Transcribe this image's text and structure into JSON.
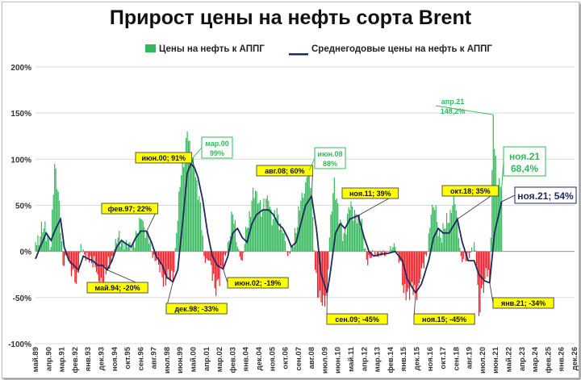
{
  "title": "Прирост цены на нефть сорта Brent",
  "legend": {
    "bars_label": "Цены на нефть к АППГ",
    "line_label": "Среднегодовые цены на нефть к АППГ"
  },
  "colors": {
    "positive_bar": "#33b85a",
    "negative_bar": "#ee1c24",
    "line": "#1f2a5e",
    "callout_yellow": "#ffff00",
    "callout_green_text": "#33b85a"
  },
  "chart_data": {
    "type": "bar",
    "title": "Прирост цены на нефть сорта Brent",
    "ylim": [
      -100,
      200
    ],
    "y_unit": "%",
    "y_ticks": [
      "200%",
      "150%",
      "100%",
      "50%",
      "0%",
      "-50%",
      "-100%"
    ],
    "x_tick_labels": [
      "май.89",
      "апр.90",
      "мар.91",
      "фев.92",
      "янв.93",
      "дек.93",
      "ноя.94",
      "окт.95",
      "сен.96",
      "авг.97",
      "июл.98",
      "июн.99",
      "май.00",
      "апр.01",
      "мар.02",
      "фев.03",
      "янв.04",
      "дек.04",
      "ноя.05",
      "окт.06",
      "сен.07",
      "авг.08",
      "июл.09",
      "июн.10",
      "май.11",
      "апр.12",
      "мар.13",
      "фев.14",
      "янв.15",
      "дек.15",
      "ноя.16",
      "окт.17",
      "сен.18",
      "авг.19",
      "июл.20",
      "июн.21",
      "май.22",
      "апр.23",
      "мар.24",
      "фев.25",
      "янв.26",
      "дек.26"
    ],
    "x_range": [
      "1989-05",
      "2026-12"
    ],
    "series": [
      {
        "name": "Цены на нефть к АППГ",
        "kind": "bar",
        "period": "monthly",
        "start": "1989-05",
        "end": "2021-11",
        "anchor_points": [
          [
            "1989-05",
            10
          ],
          [
            "1989-12",
            25
          ],
          [
            "1990-03",
            18
          ],
          [
            "1990-06",
            5
          ],
          [
            "1990-09",
            95
          ],
          [
            "1990-10",
            90
          ],
          [
            "1991-01",
            55
          ],
          [
            "1991-04",
            -15
          ],
          [
            "1991-08",
            -5
          ],
          [
            "1991-12",
            -20
          ],
          [
            "1992-03",
            -35
          ],
          [
            "1992-07",
            8
          ],
          [
            "1992-11",
            -10
          ],
          [
            "1993-03",
            -5
          ],
          [
            "1993-09",
            -25
          ],
          [
            "1994-01",
            -35
          ],
          [
            "1994-05",
            -20
          ],
          [
            "1994-09",
            -5
          ],
          [
            "1995-02",
            15
          ],
          [
            "1995-06",
            12
          ],
          [
            "1995-10",
            5
          ],
          [
            "1996-02",
            8
          ],
          [
            "1996-06",
            20
          ],
          [
            "1996-10",
            35
          ],
          [
            "1997-02",
            22
          ],
          [
            "1997-06",
            0
          ],
          [
            "1997-10",
            -10
          ],
          [
            "1998-03",
            -28
          ],
          [
            "1998-07",
            -30
          ],
          [
            "1998-12",
            -33
          ],
          [
            "1999-03",
            20
          ],
          [
            "1999-06",
            70
          ],
          [
            "1999-12",
            130
          ],
          [
            "2000-03",
            99
          ],
          [
            "2000-06",
            91
          ],
          [
            "2000-10",
            60
          ],
          [
            "2001-02",
            -5
          ],
          [
            "2001-06",
            -10
          ],
          [
            "2001-11",
            -40
          ],
          [
            "2002-02",
            -30
          ],
          [
            "2002-06",
            -19
          ],
          [
            "2002-10",
            10
          ],
          [
            "2003-02",
            40
          ],
          [
            "2003-06",
            5
          ],
          [
            "2003-10",
            -10
          ],
          [
            "2004-02",
            25
          ],
          [
            "2004-06",
            55
          ],
          [
            "2004-10",
            65
          ],
          [
            "2005-03",
            45
          ],
          [
            "2005-08",
            55
          ],
          [
            "2005-12",
            35
          ],
          [
            "2006-04",
            40
          ],
          [
            "2006-08",
            20
          ],
          [
            "2006-12",
            -5
          ],
          [
            "2007-03",
            5
          ],
          [
            "2007-07",
            20
          ],
          [
            "2007-11",
            55
          ],
          [
            "2008-03",
            75
          ],
          [
            "2008-06",
            88
          ],
          [
            "2008-08",
            60
          ],
          [
            "2008-11",
            -20
          ],
          [
            "2009-01",
            -50
          ],
          [
            "2009-04",
            -55
          ],
          [
            "2009-09",
            -45
          ],
          [
            "2009-12",
            40
          ],
          [
            "2010-03",
            80
          ],
          [
            "2010-07",
            30
          ],
          [
            "2010-11",
            20
          ],
          [
            "2011-04",
            45
          ],
          [
            "2011-08",
            45
          ],
          [
            "2011-11",
            39
          ],
          [
            "2012-03",
            20
          ],
          [
            "2012-07",
            -15
          ],
          [
            "2012-12",
            0
          ],
          [
            "2013-06",
            -5
          ],
          [
            "2013-12",
            0
          ],
          [
            "2014-06",
            5
          ],
          [
            "2014-10",
            -10
          ],
          [
            "2015-01",
            -45
          ],
          [
            "2015-05",
            -40
          ],
          [
            "2015-11",
            -45
          ],
          [
            "2016-03",
            -30
          ],
          [
            "2016-08",
            -5
          ],
          [
            "2016-12",
            40
          ],
          [
            "2017-03",
            45
          ],
          [
            "2017-08",
            15
          ],
          [
            "2017-12",
            25
          ],
          [
            "2018-04",
            45
          ],
          [
            "2018-07",
            60
          ],
          [
            "2018-10",
            35
          ],
          [
            "2019-01",
            -5
          ],
          [
            "2019-06",
            -10
          ],
          [
            "2019-12",
            10
          ],
          [
            "2020-02",
            -15
          ],
          [
            "2020-04",
            -70
          ],
          [
            "2020-06",
            -40
          ],
          [
            "2020-09",
            -30
          ],
          [
            "2020-12",
            -20
          ],
          [
            "2021-01",
            -34
          ],
          [
            "2021-04",
            148.2
          ],
          [
            "2021-07",
            70
          ],
          [
            "2021-11",
            68.4
          ]
        ]
      },
      {
        "name": "Среднегодовые цены на нефть к АППГ",
        "kind": "line",
        "period": "monthly",
        "start": "1989-05",
        "end": "2021-11",
        "anchor_points": [
          [
            "1989-05",
            -8
          ],
          [
            "1989-09",
            5
          ],
          [
            "1990-02",
            20
          ],
          [
            "1990-06",
            12
          ],
          [
            "1990-10",
            25
          ],
          [
            "1991-02",
            35
          ],
          [
            "1991-05",
            5
          ],
          [
            "1991-09",
            -10
          ],
          [
            "1992-01",
            -15
          ],
          [
            "1992-05",
            -20
          ],
          [
            "1992-09",
            -5
          ],
          [
            "1993-01",
            -8
          ],
          [
            "1993-05",
            -10
          ],
          [
            "1993-09",
            -15
          ],
          [
            "1994-01",
            -15
          ],
          [
            "1994-05",
            -20
          ],
          [
            "1994-09",
            -10
          ],
          [
            "1995-01",
            5
          ],
          [
            "1995-05",
            12
          ],
          [
            "1995-09",
            8
          ],
          [
            "1996-01",
            5
          ],
          [
            "1996-05",
            15
          ],
          [
            "1996-09",
            22
          ],
          [
            "1997-02",
            22
          ],
          [
            "1997-06",
            10
          ],
          [
            "1997-10",
            -5
          ],
          [
            "1998-03",
            -15
          ],
          [
            "1998-07",
            -28
          ],
          [
            "1998-12",
            -33
          ],
          [
            "1999-04",
            -20
          ],
          [
            "1999-08",
            30
          ],
          [
            "1999-12",
            85
          ],
          [
            "2000-03",
            95
          ],
          [
            "2000-06",
            91
          ],
          [
            "2000-09",
            80
          ],
          [
            "2001-01",
            55
          ],
          [
            "2001-05",
            20
          ],
          [
            "2001-09",
            -5
          ],
          [
            "2002-01",
            -15
          ],
          [
            "2002-06",
            -19
          ],
          [
            "2002-10",
            -5
          ],
          [
            "2003-02",
            20
          ],
          [
            "2003-06",
            25
          ],
          [
            "2003-10",
            15
          ],
          [
            "2004-02",
            10
          ],
          [
            "2004-06",
            30
          ],
          [
            "2004-10",
            40
          ],
          [
            "2005-03",
            45
          ],
          [
            "2005-08",
            45
          ],
          [
            "2005-12",
            40
          ],
          [
            "2006-04",
            30
          ],
          [
            "2006-08",
            25
          ],
          [
            "2006-12",
            15
          ],
          [
            "2007-03",
            5
          ],
          [
            "2007-07",
            10
          ],
          [
            "2007-11",
            30
          ],
          [
            "2008-03",
            50
          ],
          [
            "2008-08",
            60
          ],
          [
            "2008-12",
            25
          ],
          [
            "2009-04",
            -25
          ],
          [
            "2009-09",
            -45
          ],
          [
            "2009-12",
            -20
          ],
          [
            "2010-04",
            20
          ],
          [
            "2010-08",
            30
          ],
          [
            "2010-12",
            25
          ],
          [
            "2011-04",
            35
          ],
          [
            "2011-11",
            39
          ],
          [
            "2012-04",
            15
          ],
          [
            "2012-08",
            0
          ],
          [
            "2012-12",
            -5
          ],
          [
            "2013-06",
            -3
          ],
          [
            "2013-12",
            -2
          ],
          [
            "2014-06",
            0
          ],
          [
            "2014-12",
            -10
          ],
          [
            "2015-04",
            -30
          ],
          [
            "2015-11",
            -45
          ],
          [
            "2016-04",
            -35
          ],
          [
            "2016-10",
            -10
          ],
          [
            "2017-02",
            15
          ],
          [
            "2017-06",
            25
          ],
          [
            "2017-10",
            20
          ],
          [
            "2018-03",
            20
          ],
          [
            "2018-10",
            35
          ],
          [
            "2019-02",
            10
          ],
          [
            "2019-07",
            -10
          ],
          [
            "2019-12",
            -10
          ],
          [
            "2020-04",
            -25
          ],
          [
            "2020-09",
            -32
          ],
          [
            "2021-01",
            -34
          ],
          [
            "2021-05",
            20
          ],
          [
            "2021-11",
            54
          ]
        ]
      }
    ],
    "annotations": [
      {
        "label": "май.94; -20%",
        "style": "yellow",
        "date": "1994-05",
        "value": -20
      },
      {
        "label": "фев.97; 22%",
        "style": "yellow",
        "date": "1997-02",
        "value": 22
      },
      {
        "label": "дек.98; -33%",
        "style": "yellow",
        "date": "1998-12",
        "value": -33
      },
      {
        "label": "июн.00; 91%",
        "style": "yellow",
        "date": "2000-06",
        "value": 91
      },
      {
        "label": "мар.00",
        "label2": "99%",
        "style": "green",
        "date": "2000-03",
        "value": 99
      },
      {
        "label": "июн.02; -19%",
        "style": "yellow",
        "date": "2002-06",
        "value": -19
      },
      {
        "label": "авг.08; 60%",
        "style": "yellow",
        "date": "2008-08",
        "value": 60
      },
      {
        "label": "июн.08",
        "label2": "88%",
        "style": "green",
        "date": "2008-06",
        "value": 88
      },
      {
        "label": "сен.09; -45%",
        "style": "yellow",
        "date": "2009-09",
        "value": -45
      },
      {
        "label": "ноя.11; 39%",
        "style": "yellow",
        "date": "2011-11",
        "value": 39
      },
      {
        "label": "ноя.15; -45%",
        "style": "yellow",
        "date": "2015-11",
        "value": -45
      },
      {
        "label": "окт.18; 35%",
        "style": "yellow",
        "date": "2018-10",
        "value": 35
      },
      {
        "label": "апр.21",
        "label2": "148,2%",
        "style": "green-plain",
        "date": "2021-04",
        "value": 148.2
      },
      {
        "label": "янв.21; -34%",
        "style": "yellow",
        "date": "2021-01",
        "value": -34
      },
      {
        "label": "ноя.21",
        "label2": "68,4%",
        "style": "green-big",
        "date": "2021-11",
        "value": 68.4
      },
      {
        "label": "ноя.21; 54%",
        "style": "navy-big",
        "date": "2021-11",
        "value": 54
      }
    ]
  }
}
